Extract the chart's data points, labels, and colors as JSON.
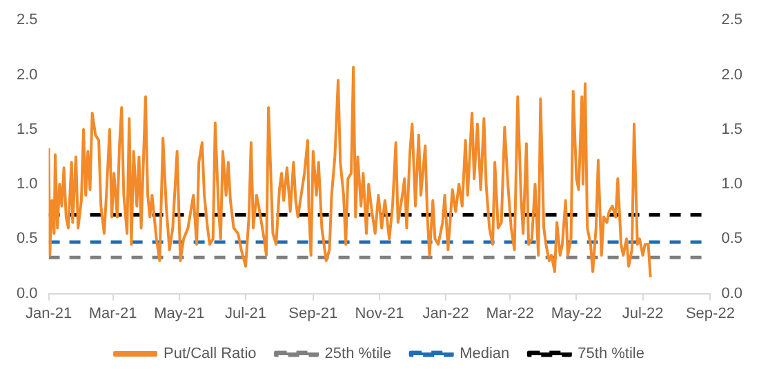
{
  "chart_data": {
    "type": "line",
    "x": [
      "2021-01-01",
      "2021-01-02",
      "2021-01-04",
      "2021-01-06",
      "2021-01-07",
      "2021-01-09",
      "2021-01-11",
      "2021-01-13",
      "2021-01-15",
      "2021-01-17",
      "2021-01-19",
      "2021-01-22",
      "2021-01-23",
      "2021-01-26",
      "2021-01-28",
      "2021-01-31",
      "2021-02-02",
      "2021-02-04",
      "2021-02-06",
      "2021-02-08",
      "2021-02-10",
      "2021-02-13",
      "2021-02-16",
      "2021-02-18",
      "2021-02-21",
      "2021-02-23",
      "2021-02-26",
      "2021-02-28",
      "2021-03-02",
      "2021-03-05",
      "2021-03-07",
      "2021-03-09",
      "2021-03-11",
      "2021-03-14",
      "2021-03-16",
      "2021-03-18",
      "2021-03-20",
      "2021-03-23",
      "2021-03-25",
      "2021-03-27",
      "2021-03-31",
      "2021-04-02",
      "2021-04-04",
      "2021-04-06",
      "2021-04-10",
      "2021-04-13",
      "2021-04-16",
      "2021-04-19",
      "2021-04-22",
      "2021-04-25",
      "2021-04-29",
      "2021-05-02",
      "2021-05-05",
      "2021-05-09",
      "2021-05-14",
      "2021-05-17",
      "2021-05-19",
      "2021-05-22",
      "2021-05-24",
      "2021-05-27",
      "2021-05-29",
      "2021-06-01",
      "2021-06-03",
      "2021-06-06",
      "2021-06-08",
      "2021-06-10",
      "2021-06-13",
      "2021-06-15",
      "2021-06-17",
      "2021-06-20",
      "2021-06-24",
      "2021-06-27",
      "2021-07-01",
      "2021-07-04",
      "2021-07-06",
      "2021-07-08",
      "2021-07-11",
      "2021-07-13",
      "2021-07-18",
      "2021-07-20",
      "2021-07-22",
      "2021-07-26",
      "2021-07-29",
      "2021-08-01",
      "2021-08-03",
      "2021-08-05",
      "2021-08-08",
      "2021-08-11",
      "2021-08-14",
      "2021-08-16",
      "2021-08-18",
      "2021-08-21",
      "2021-08-24",
      "2021-08-27",
      "2021-08-28",
      "2021-08-30",
      "2021-09-01",
      "2021-09-04",
      "2021-09-06",
      "2021-09-09",
      "2021-09-13",
      "2021-09-16",
      "2021-09-18",
      "2021-09-21",
      "2021-09-24",
      "2021-09-26",
      "2021-09-29",
      "2021-10-01",
      "2021-10-03",
      "2021-10-06",
      "2021-10-08",
      "2021-10-10",
      "2021-10-12",
      "2021-10-15",
      "2021-10-17",
      "2021-10-20",
      "2021-10-22",
      "2021-10-25",
      "2021-10-28",
      "2021-10-31",
      "2021-11-03",
      "2021-11-06",
      "2021-11-10",
      "2021-11-13",
      "2021-11-16",
      "2021-11-18",
      "2021-11-22",
      "2021-11-24",
      "2021-11-26",
      "2021-11-29",
      "2021-12-01",
      "2021-12-04",
      "2021-12-07",
      "2021-12-09",
      "2021-12-13",
      "2021-12-15",
      "2021-12-17",
      "2021-12-20",
      "2021-12-22",
      "2021-12-25",
      "2021-12-29",
      "2021-12-31",
      "2022-01-03",
      "2022-01-07",
      "2022-01-10",
      "2022-01-13",
      "2022-01-16",
      "2022-01-19",
      "2022-01-21",
      "2022-01-25",
      "2022-01-27",
      "2022-01-30",
      "2022-02-02",
      "2022-02-05",
      "2022-02-07",
      "2022-02-10",
      "2022-02-13",
      "2022-02-15",
      "2022-02-18",
      "2022-02-21",
      "2022-02-24",
      "2022-02-27",
      "2022-03-02",
      "2022-03-05",
      "2022-03-08",
      "2022-03-11",
      "2022-03-13",
      "2022-03-16",
      "2022-03-18",
      "2022-03-21",
      "2022-03-24",
      "2022-03-27",
      "2022-03-29",
      "2022-04-01",
      "2022-04-03",
      "2022-04-06",
      "2022-04-08",
      "2022-04-11",
      "2022-04-13",
      "2022-04-16",
      "2022-04-18",
      "2022-04-21",
      "2022-04-23",
      "2022-04-26",
      "2022-04-28",
      "2022-05-01",
      "2022-05-03",
      "2022-05-06",
      "2022-05-07",
      "2022-05-09",
      "2022-05-11",
      "2022-05-14",
      "2022-05-16",
      "2022-05-19",
      "2022-05-21",
      "2022-05-24",
      "2022-05-26",
      "2022-05-29",
      "2022-05-31",
      "2022-06-03",
      "2022-06-06",
      "2022-06-08",
      "2022-06-11",
      "2022-06-13",
      "2022-06-16",
      "2022-06-18",
      "2022-06-21",
      "2022-06-23",
      "2022-06-26",
      "2022-06-28",
      "2022-07-01",
      "2022-07-03",
      "2022-07-06",
      "2022-07-08"
    ],
    "series": [
      {
        "name": "Put/Call Ratio",
        "color": "#f28a2a",
        "line_style": "solid",
        "values": [
          1.33,
          0.35,
          0.85,
          0.55,
          1.27,
          0.6,
          1.0,
          0.8,
          1.15,
          0.7,
          0.6,
          1.2,
          0.65,
          1.25,
          0.6,
          0.85,
          1.5,
          0.9,
          1.3,
          0.95,
          1.65,
          1.45,
          1.4,
          0.8,
          0.55,
          0.9,
          1.5,
          0.7,
          1.1,
          0.7,
          1.35,
          1.7,
          0.9,
          0.55,
          1.6,
          0.45,
          1.3,
          0.8,
          1.25,
          0.6,
          1.8,
          0.9,
          0.7,
          0.9,
          0.5,
          0.3,
          1.42,
          0.8,
          0.4,
          0.6,
          1.3,
          0.3,
          0.5,
          0.6,
          0.9,
          0.45,
          1.2,
          1.38,
          0.9,
          0.6,
          0.45,
          0.5,
          1.56,
          0.8,
          0.5,
          1.3,
          0.9,
          1.2,
          0.85,
          0.6,
          0.55,
          0.4,
          0.25,
          0.7,
          1.38,
          0.6,
          0.9,
          0.8,
          0.5,
          0.35,
          1.7,
          0.55,
          0.45,
          0.95,
          1.1,
          0.85,
          1.15,
          0.75,
          1.2,
          0.85,
          0.7,
          0.9,
          1.1,
          1.4,
          0.8,
          0.35,
          1.3,
          0.9,
          1.2,
          0.6,
          0.3,
          0.4,
          0.9,
          1.25,
          1.95,
          1.2,
          0.9,
          0.45,
          1.05,
          1.1,
          2.07,
          0.7,
          1.25,
          0.8,
          1.1,
          0.55,
          1.0,
          0.75,
          0.55,
          0.9,
          0.6,
          0.85,
          0.5,
          0.8,
          1.38,
          0.65,
          0.9,
          1.05,
          0.6,
          1.3,
          1.55,
          0.8,
          1.45,
          0.9,
          1.35,
          0.7,
          0.35,
          0.85,
          0.5,
          0.45,
          0.65,
          0.9,
          0.4,
          0.95,
          0.75,
          1.0,
          0.8,
          1.4,
          0.9,
          1.65,
          1.05,
          1.55,
          0.95,
          1.6,
          1.0,
          0.6,
          0.45,
          1.2,
          0.6,
          0.65,
          1.52,
          1.0,
          0.6,
          0.4,
          1.8,
          0.9,
          0.55,
          1.37,
          0.45,
          0.5,
          1.0,
          0.35,
          1.78,
          0.6,
          0.45,
          0.3,
          0.35,
          0.2,
          0.65,
          0.35,
          0.45,
          0.85,
          0.35,
          0.5,
          1.85,
          1.05,
          0.95,
          1.8,
          1.0,
          1.92,
          0.6,
          0.45,
          0.2,
          0.6,
          1.22,
          0.35,
          0.7,
          0.65,
          0.75,
          0.8,
          0.7,
          1.05,
          0.45,
          0.35,
          0.5,
          0.25,
          0.4,
          1.55,
          0.45,
          0.5,
          0.35,
          0.45,
          0.45,
          0.15
        ]
      },
      {
        "name": "25th %tile",
        "color": "#7f7f7f",
        "line_style": "dashed",
        "x": [
          "2021-01-01",
          "2022-09-01"
        ],
        "values": [
          0.33,
          0.33
        ]
      },
      {
        "name": "Median",
        "color": "#1f6db3",
        "line_style": "dashed",
        "x": [
          "2021-01-01",
          "2022-09-01"
        ],
        "values": [
          0.47,
          0.47
        ]
      },
      {
        "name": "75th %tile",
        "color": "#000000",
        "line_style": "dashed",
        "x": [
          "2021-01-01",
          "2022-09-01"
        ],
        "values": [
          0.72,
          0.72
        ]
      }
    ],
    "xlim": [
      "2021-01-01",
      "2022-09-01"
    ],
    "xticks": [
      {
        "value": "2021-01-01",
        "label": "Jan-21"
      },
      {
        "value": "2021-03-01",
        "label": "Mar-21"
      },
      {
        "value": "2021-05-01",
        "label": "May-21"
      },
      {
        "value": "2021-07-01",
        "label": "Jul-21"
      },
      {
        "value": "2021-09-01",
        "label": "Sep-21"
      },
      {
        "value": "2021-11-01",
        "label": "Nov-21"
      },
      {
        "value": "2022-01-01",
        "label": "Jan-22"
      },
      {
        "value": "2022-03-01",
        "label": "Mar-22"
      },
      {
        "value": "2022-05-01",
        "label": "May-22"
      },
      {
        "value": "2022-07-01",
        "label": "Jul-22"
      },
      {
        "value": "2022-09-01",
        "label": "Sep-22"
      }
    ],
    "ylim": [
      0,
      2.5
    ],
    "yticks": [
      {
        "value": 0,
        "label": "0.0"
      },
      {
        "value": 0.5,
        "label": "0.5"
      },
      {
        "value": 1,
        "label": "1.0"
      },
      {
        "value": 1.5,
        "label": "1.5"
      },
      {
        "value": 2,
        "label": "2.0"
      },
      {
        "value": 2.5,
        "label": "2.5"
      }
    ],
    "y2lim": [
      0,
      2.5
    ],
    "y2ticks": [
      {
        "value": 0,
        "label": "0.0"
      },
      {
        "value": 0.5,
        "label": "0.5"
      },
      {
        "value": 1,
        "label": "1.0"
      },
      {
        "value": 1.5,
        "label": "1.5"
      },
      {
        "value": 2,
        "label": "2.0"
      },
      {
        "value": 2.5,
        "label": "2.5"
      }
    ],
    "grid": false,
    "legend": "bottom",
    "marker": "none"
  }
}
